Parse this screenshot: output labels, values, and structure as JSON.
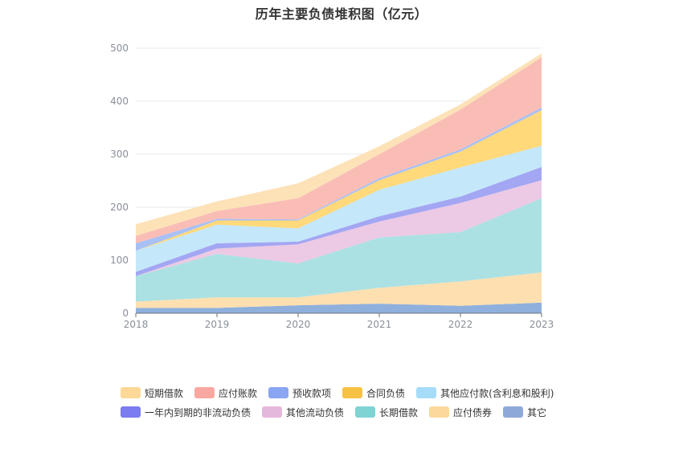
{
  "chart_data": {
    "type": "area",
    "stacked": true,
    "title": "历年主要负债堆积图（亿元）",
    "categories": [
      "2018",
      "2019",
      "2020",
      "2021",
      "2022",
      "2023"
    ],
    "ylim": [
      0,
      500
    ],
    "yticks": [
      0,
      100,
      200,
      300,
      400,
      500
    ],
    "grid": true,
    "legend_position": "bottom",
    "series": [
      {
        "name": "其它",
        "color": "#8fb0dd",
        "values": [
          10,
          10,
          15,
          18,
          14,
          20
        ]
      },
      {
        "name": "应付债券",
        "color": "#fddfb0",
        "values": [
          12,
          20,
          15,
          30,
          46,
          57
        ]
      },
      {
        "name": "长期借款",
        "color": "#abe1e3",
        "values": [
          48,
          82,
          64,
          95,
          93,
          140
        ]
      },
      {
        "name": "其他流动负债",
        "color": "#ecc9e4",
        "values": [
          0,
          10,
          36,
          30,
          55,
          34
        ]
      },
      {
        "name": "一年内到期的非流动负债",
        "color": "#a3a6f2",
        "values": [
          8,
          10,
          5,
          10,
          12,
          25
        ]
      },
      {
        "name": "其他应付款(含利息和股利)",
        "color": "#c4e7fa",
        "values": [
          40,
          35,
          25,
          50,
          55,
          40
        ]
      },
      {
        "name": "合同负债",
        "color": "#ffd97a",
        "values": [
          0,
          8,
          15,
          18,
          30,
          67
        ]
      },
      {
        "name": "预收款项",
        "color": "#a8c0f5",
        "values": [
          14,
          3,
          2,
          4,
          4,
          5
        ]
      },
      {
        "name": "应付账款",
        "color": "#fabdb6",
        "values": [
          14,
          15,
          40,
          45,
          75,
          95
        ]
      },
      {
        "name": "短期借款",
        "color": "#fde2b7",
        "values": [
          22,
          18,
          28,
          15,
          10,
          7
        ]
      }
    ],
    "legend_order": [
      "短期借款",
      "应付账款",
      "预收款项",
      "合同负债",
      "其他应付款(含利息和股利)",
      "一年内到期的非流动负债",
      "其他流动负债",
      "长期借款",
      "应付债券",
      "其它"
    ],
    "legend_colors": {
      "短期借款": "#fdd897",
      "应付账款": "#f8a8a0",
      "预收款项": "#8aa6f3",
      "合同负债": "#f7c244",
      "其他应付款(含利息和股利)": "#a6dcf8",
      "一年内到期的非流动负债": "#7b7cf0",
      "其他流动负债": "#e4b8dc",
      "长期借款": "#7fd3d3",
      "应付债券": "#fcd89d",
      "其它": "#8ea9d9"
    }
  }
}
